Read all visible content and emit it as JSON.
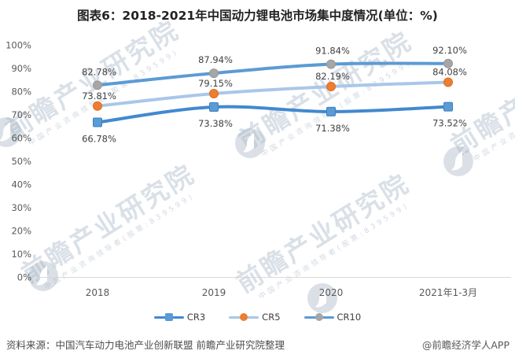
{
  "title": "图表6：2018-2021年中国动力锂电池市场集中度情况(单位：%)",
  "watermark": {
    "text": "前瞻产业研究院",
    "subtext": "中国产业咨询领导者(股票:839599)"
  },
  "footer": {
    "source": "资料来源：中国汽车动力电池产业创新联盟 前瞻产业研究院整理",
    "brand": "@前瞻经济学人APP"
  },
  "colors": {
    "axis_line": "#d9d9d9",
    "tick_text": "#595959",
    "data_label_text": "#404040"
  },
  "chart_data": {
    "type": "line",
    "title": "图表6：2018-2021年中国动力锂电池市场集中度情况(单位：%)",
    "categories": [
      "2018",
      "2019",
      "2020",
      "2021年1-3月"
    ],
    "series": [
      {
        "name": "CR3",
        "values": [
          66.78,
          73.38,
          71.38,
          73.52
        ],
        "labels": [
          "66.78%",
          "73.38%",
          "71.38%",
          "73.52%"
        ],
        "line_color": "#4289cf",
        "marker": "square",
        "marker_color": "#5b9bd5",
        "marker_edge": "#3d7fc1",
        "label_position": "below",
        "label_offset": 25
      },
      {
        "name": "CR5",
        "values": [
          73.81,
          79.15,
          82.19,
          84.08
        ],
        "labels": [
          "73.81%",
          "79.15%",
          "82.19%",
          "84.08%"
        ],
        "line_color": "#a9c7e8",
        "marker": "circle",
        "marker_color": "#ed7d31",
        "marker_edge": "#e06d20",
        "label_position": "above",
        "label_offset": -9
      },
      {
        "name": "CR10",
        "values": [
          82.78,
          87.94,
          91.84,
          92.1
        ],
        "labels": [
          "82.78%",
          "87.94%",
          "91.84%",
          "92.10%"
        ],
        "line_color": "#5b9bd5",
        "marker": "circle",
        "marker_color": "#a6a6a6",
        "marker_edge": "#989898",
        "label_position": "above",
        "label_offset": -13
      }
    ],
    "xlabel": "",
    "ylabel": "",
    "ylim": [
      0,
      100
    ],
    "y_ticks": [
      "0%",
      "10%",
      "20%",
      "30%",
      "40%",
      "50%",
      "60%",
      "70%",
      "80%",
      "90%",
      "100%"
    ],
    "grid": false,
    "legend_position": "bottom"
  }
}
